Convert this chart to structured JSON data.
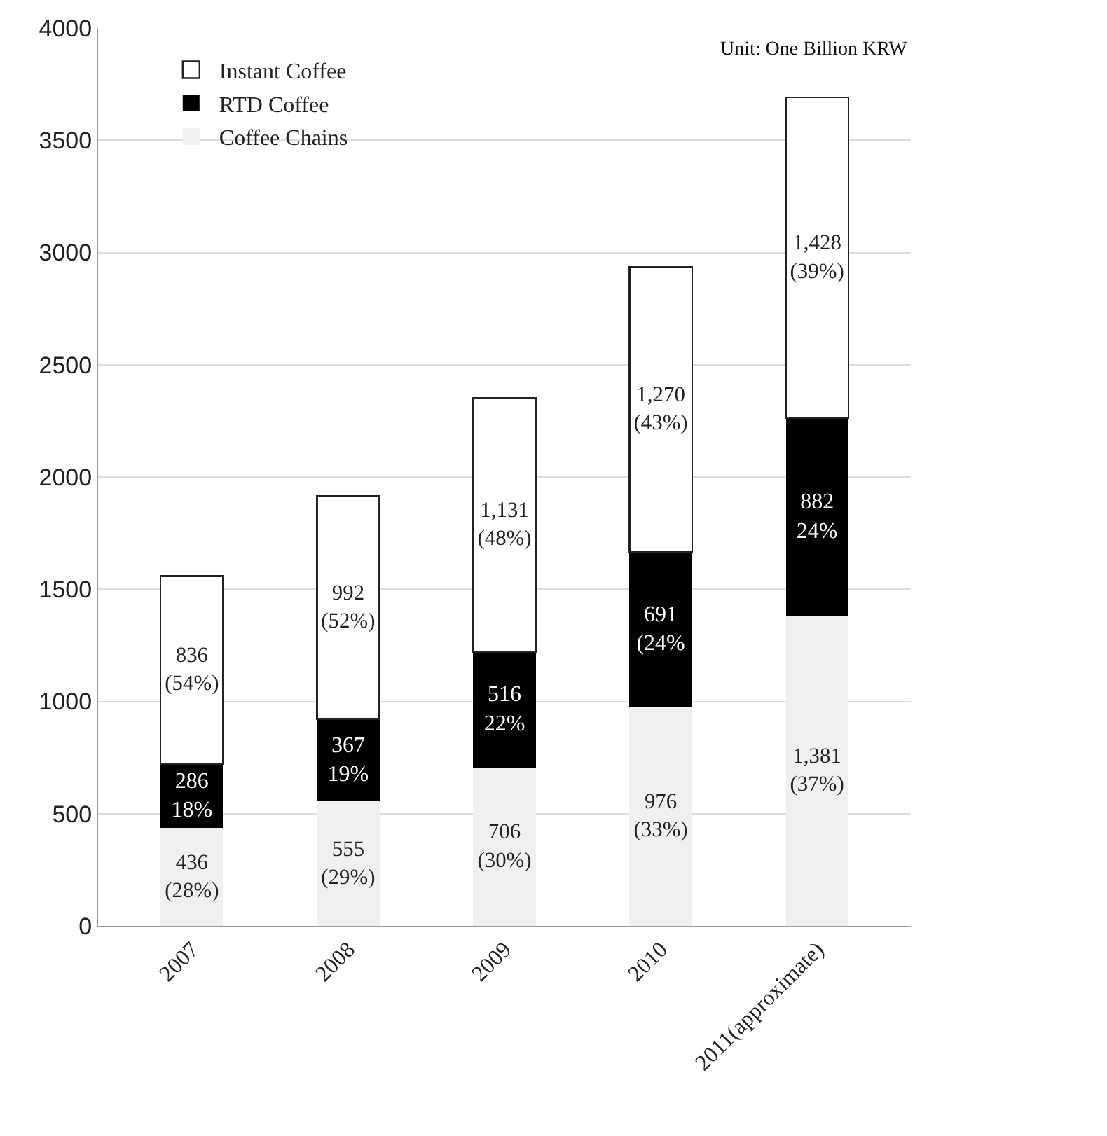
{
  "chart_data": {
    "type": "bar",
    "stacked": true,
    "categories": [
      "2007",
      "2008",
      "2009",
      "2010",
      "2011(approximate)"
    ],
    "series": [
      {
        "name": "Coffee Chains",
        "color": "#f0f0f0",
        "values": [
          436,
          555,
          706,
          976,
          1381
        ],
        "value_labels": [
          "436\n(28%)",
          "555\n(29%)",
          "706\n(30%)",
          "976\n(33%)",
          "1,381\n(37%)"
        ]
      },
      {
        "name": "RTD Coffee",
        "color": "#000000",
        "values": [
          286,
          367,
          516,
          691,
          882
        ],
        "value_labels": [
          "286\n18%",
          "367\n19%",
          "516\n22%",
          "691\n(24%",
          "882\n24%"
        ]
      },
      {
        "name": "Instant Coffee",
        "color": "#ffffff",
        "values": [
          836,
          992,
          1131,
          1270,
          1428
        ],
        "value_labels": [
          "836\n(54%)",
          "992\n(52%)",
          "1,131\n(48%)",
          "1,270\n(43%)",
          "1,428\n(39%)"
        ]
      }
    ],
    "ylim": [
      0,
      4000
    ],
    "yticks": [
      0,
      500,
      1000,
      1500,
      2000,
      2500,
      3000,
      3500,
      4000
    ],
    "grid": "y",
    "legend": "top left",
    "annotations": [
      "Unit: One Billion KRW"
    ]
  }
}
